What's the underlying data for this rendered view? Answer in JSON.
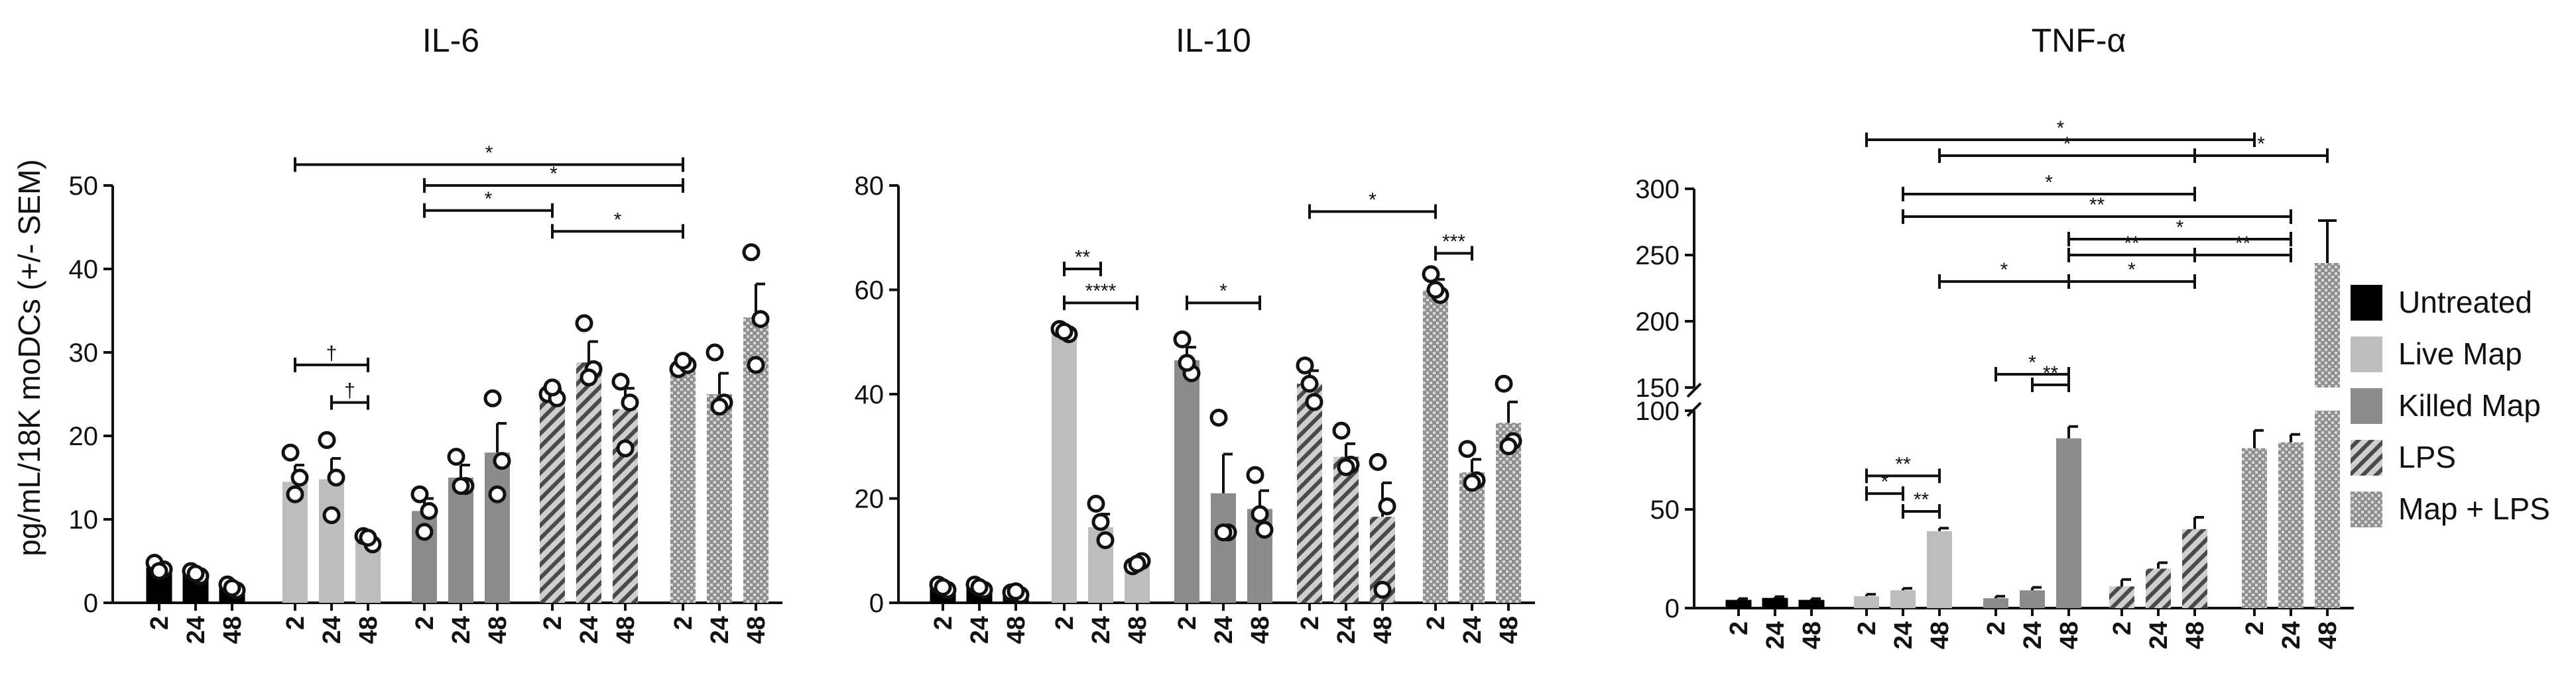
{
  "y_axis_label": "pg/mL/18K moDCs (+/- SEM)",
  "time_labels": [
    "2",
    "24",
    "48"
  ],
  "legend": {
    "items": [
      {
        "label": "Untreated",
        "pattern": "solid-black"
      },
      {
        "label": "Live Map",
        "pattern": "solid-light"
      },
      {
        "label": "Killed Map",
        "pattern": "solid-mid"
      },
      {
        "label": "LPS",
        "pattern": "hatch"
      },
      {
        "label": "Map + LPS",
        "pattern": "check"
      }
    ]
  },
  "colors": {
    "untreated": "#000000",
    "live_map": "#bdbdbd",
    "killed_map": "#8c8c8c",
    "lps_fill": "#cfcfcf",
    "lps_stripe": "#4a4a4a",
    "check_fill": "#9a9a9a",
    "check_dot": "#d8d8d8"
  },
  "chart_data": [
    {
      "type": "bar",
      "title": "IL-6",
      "ylabel": "pg/mL/18K moDCs (+/- SEM)",
      "ylim": [
        0,
        50
      ],
      "yticks": [
        "0",
        "10",
        "20",
        "30",
        "40",
        "50"
      ],
      "groups": [
        "Untreated",
        "Live Map",
        "Killed Map",
        "LPS",
        "Map + LPS"
      ],
      "categories": [
        "2",
        "24",
        "48"
      ],
      "series": [
        {
          "name": "Untreated",
          "values": [
            4.2,
            3.5,
            1.8
          ],
          "sem": [
            0.3,
            0.3,
            0.3
          ],
          "points": [
            [
              4.8,
              4.0,
              3.8
            ],
            [
              3.8,
              3.2,
              3.5
            ],
            [
              2.2,
              1.5,
              1.8
            ]
          ]
        },
        {
          "name": "Live Map",
          "values": [
            14.5,
            14.8,
            7.3
          ],
          "sem": [
            2.0,
            2.5,
            0.5
          ],
          "points": [
            [
              18.0,
              15.0,
              13.0
            ],
            [
              19.5,
              15.0,
              10.5
            ],
            [
              8.0,
              7.0,
              7.8
            ]
          ]
        },
        {
          "name": "Killed Map",
          "values": [
            11.0,
            15.0,
            18.0
          ],
          "sem": [
            1.5,
            1.5,
            3.5
          ],
          "points": [
            [
              13.0,
              11.0,
              8.5
            ],
            [
              17.5,
              14.0,
              14.0
            ],
            [
              24.5,
              17.0,
              13.0
            ]
          ]
        },
        {
          "name": "LPS",
          "values": [
            25.0,
            28.8,
            23.2
          ],
          "sem": [
            0.6,
            2.5,
            2.5
          ],
          "points": [
            [
              25.0,
              24.5,
              25.8
            ],
            [
              33.5,
              28.0,
              27.0
            ],
            [
              26.5,
              24.0,
              18.5
            ]
          ]
        },
        {
          "name": "Map + LPS",
          "values": [
            28.5,
            25.0,
            34.2
          ],
          "sem": [
            0.3,
            2.5,
            4.0
          ],
          "points": [
            [
              28.0,
              28.5,
              29.0
            ],
            [
              30.0,
              24.0,
              23.5
            ],
            [
              42.0,
              34.0,
              28.5
            ]
          ]
        }
      ],
      "significance": [
        {
          "from": [
            1,
            0
          ],
          "to": [
            4,
            0
          ],
          "label": "*",
          "y": 52.5
        },
        {
          "from": [
            2,
            0
          ],
          "to": [
            4,
            0
          ],
          "label": "*",
          "y": 50.0
        },
        {
          "from": [
            2,
            0
          ],
          "to": [
            3,
            0
          ],
          "label": "*",
          "y": 47.0
        },
        {
          "from": [
            3,
            0
          ],
          "to": [
            4,
            0
          ],
          "label": "*",
          "y": 44.5
        },
        {
          "from": [
            1,
            0
          ],
          "to": [
            1,
            2
          ],
          "label": "†",
          "y": 28.5
        },
        {
          "from": [
            1,
            1
          ],
          "to": [
            1,
            2
          ],
          "label": "†",
          "y": 24.0
        }
      ]
    },
    {
      "type": "bar",
      "title": "IL-10",
      "ylim": [
        0,
        80
      ],
      "yticks": [
        "0",
        "20",
        "40",
        "60",
        "80"
      ],
      "groups": [
        "Untreated",
        "Live Map",
        "Killed Map",
        "LPS",
        "Map + LPS"
      ],
      "categories": [
        "2",
        "24",
        "48"
      ],
      "series": [
        {
          "name": "Untreated",
          "values": [
            3.0,
            3.0,
            2.0
          ],
          "sem": [
            0.5,
            0.5,
            0.3
          ],
          "points": [
            [
              3.5,
              2.5,
              3.0
            ],
            [
              3.5,
              2.5,
              3.0
            ],
            [
              2.0,
              1.5,
              2.2
            ]
          ]
        },
        {
          "name": "Live Map",
          "values": [
            52.0,
            14.5,
            7.5
          ],
          "sem": [
            0.5,
            2.5,
            0.5
          ],
          "points": [
            [
              52.5,
              51.5,
              52.0
            ],
            [
              19.0,
              12.0,
              15.5
            ],
            [
              7.0,
              8.0,
              7.5
            ]
          ]
        },
        {
          "name": "Killed Map",
          "values": [
            46.5,
            21.0,
            18.0
          ],
          "sem": [
            2.5,
            7.5,
            3.5
          ],
          "points": [
            [
              50.5,
              44.0,
              46.0
            ],
            [
              35.5,
              13.5,
              13.5
            ],
            [
              24.5,
              14.0,
              17.0
            ]
          ]
        },
        {
          "name": "LPS",
          "values": [
            42.0,
            28.0,
            16.5
          ],
          "sem": [
            2.5,
            2.5,
            6.5
          ],
          "points": [
            [
              45.5,
              38.5,
              42.0
            ],
            [
              33.0,
              26.5,
              26.0
            ],
            [
              27.0,
              18.5,
              2.5
            ]
          ]
        },
        {
          "name": "Map + LPS",
          "values": [
            60.0,
            25.0,
            34.5
          ],
          "sem": [
            2.0,
            2.5,
            4.0
          ],
          "points": [
            [
              63.0,
              59.0,
              60.0
            ],
            [
              29.5,
              23.5,
              23.0
            ],
            [
              42.0,
              31.0,
              30.0
            ]
          ]
        }
      ],
      "significance": [
        {
          "from": [
            1,
            0
          ],
          "to": [
            1,
            1
          ],
          "label": "**",
          "y": 64.0
        },
        {
          "from": [
            1,
            0
          ],
          "to": [
            1,
            2
          ],
          "label": "****",
          "y": 57.5
        },
        {
          "from": [
            2,
            0
          ],
          "to": [
            2,
            2
          ],
          "label": "*",
          "y": 57.5
        },
        {
          "from": [
            3,
            0
          ],
          "to": [
            4,
            0
          ],
          "label": "*",
          "y": 75.0
        },
        {
          "from": [
            4,
            0
          ],
          "to": [
            4,
            1
          ],
          "label": "***",
          "y": 67.0
        }
      ]
    },
    {
      "type": "bar",
      "title": "TNF-α",
      "ylim_lower": [
        0,
        100
      ],
      "ylim_upper": [
        150,
        300
      ],
      "axis_break": [
        100,
        150
      ],
      "yticks_lower": [
        "0",
        "50",
        "100"
      ],
      "yticks_upper": [
        "150",
        "200",
        "250",
        "300"
      ],
      "groups": [
        "Untreated",
        "Live Map",
        "Killed Map",
        "LPS",
        "Map + LPS"
      ],
      "categories": [
        "2",
        "24",
        "48"
      ],
      "series": [
        {
          "name": "Untreated",
          "values": [
            4.0,
            5.0,
            4.0
          ],
          "sem": [
            0.8,
            0.8,
            0.8
          ]
        },
        {
          "name": "Live Map",
          "values": [
            6.0,
            9.0,
            39.0
          ],
          "sem": [
            1.0,
            1.0,
            1.5
          ]
        },
        {
          "name": "Killed Map",
          "values": [
            5.0,
            9.0,
            86.0
          ],
          "sem": [
            1.0,
            1.5,
            6.0
          ]
        },
        {
          "name": "LPS",
          "values": [
            11.0,
            20.0,
            40.0
          ],
          "sem": [
            3.5,
            3.0,
            6.0
          ]
        },
        {
          "name": "Map + LPS",
          "values": [
            81.0,
            84.0,
            244.0
          ],
          "sem": [
            9.0,
            4.0,
            32.0
          ]
        }
      ],
      "significance": [
        {
          "from": [
            1,
            0
          ],
          "to": [
            4,
            0
          ],
          "label": "*",
          "y": 337
        },
        {
          "from": [
            1,
            2
          ],
          "to": [
            3,
            2
          ],
          "label": "*",
          "y": 325
        },
        {
          "from": [
            3,
            2
          ],
          "to": [
            4,
            2
          ],
          "label": "*",
          "y": 325
        },
        {
          "from": [
            1,
            1
          ],
          "to": [
            3,
            2
          ],
          "label": "*",
          "y": 296
        },
        {
          "from": [
            1,
            1
          ],
          "to": [
            4,
            1
          ],
          "label": "**",
          "y": 279
        },
        {
          "from": [
            2,
            2
          ],
          "to": [
            4,
            1
          ],
          "label": "*",
          "y": 262
        },
        {
          "from": [
            2,
            2
          ],
          "to": [
            3,
            2
          ],
          "label": "**",
          "y": 250
        },
        {
          "from": [
            3,
            2
          ],
          "to": [
            4,
            1
          ],
          "label": "**",
          "y": 250
        },
        {
          "from": [
            1,
            2
          ],
          "to": [
            2,
            2
          ],
          "label": "*",
          "y": 230
        },
        {
          "from": [
            2,
            2
          ],
          "to": [
            3,
            2
          ],
          "label": "*",
          "y": 230
        },
        {
          "from": [
            2,
            0
          ],
          "to": [
            2,
            2
          ],
          "label": "*",
          "y": 160
        },
        {
          "from": [
            2,
            1
          ],
          "to": [
            2,
            2
          ],
          "label": "**",
          "y": 152
        },
        {
          "from": [
            1,
            0
          ],
          "to": [
            1,
            2
          ],
          "label": "**",
          "y": 67
        },
        {
          "from": [
            1,
            0
          ],
          "to": [
            1,
            1
          ],
          "label": "*",
          "y": 58
        },
        {
          "from": [
            1,
            1
          ],
          "to": [
            1,
            2
          ],
          "label": "**",
          "y": 49
        }
      ]
    }
  ]
}
